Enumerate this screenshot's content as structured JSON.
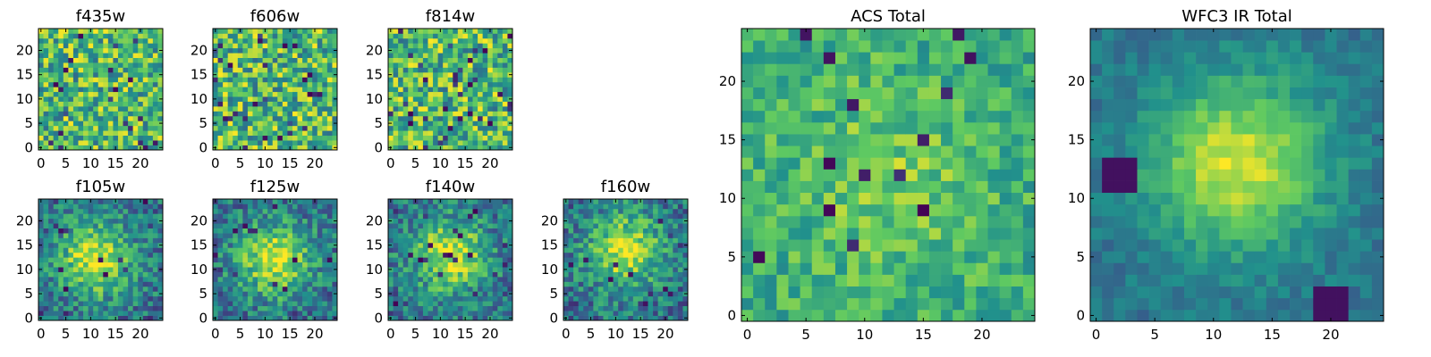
{
  "figure": {
    "background": "#ffffff",
    "colormap": "viridis",
    "colormap_stops": [
      "#440154",
      "#3b528b",
      "#21918c",
      "#5ec962",
      "#fde725"
    ]
  },
  "chart_data": [
    {
      "type": "heatmap",
      "title": "f435w",
      "grid_size": 25,
      "xlim": [
        0,
        24
      ],
      "ylim": [
        0,
        24
      ],
      "x_ticks": [
        "0",
        "5",
        "10",
        "15",
        "20"
      ],
      "y_ticks": [
        "0",
        "5",
        "10",
        "15",
        "20"
      ],
      "pattern": "uniform noise",
      "value_range": [
        0,
        1
      ]
    },
    {
      "type": "heatmap",
      "title": "f606w",
      "grid_size": 25,
      "xlim": [
        0,
        24
      ],
      "ylim": [
        0,
        24
      ],
      "x_ticks": [
        "0",
        "5",
        "10",
        "15",
        "20"
      ],
      "y_ticks": [
        "0",
        "5",
        "10",
        "15",
        "20"
      ],
      "pattern": "uniform noise",
      "value_range": [
        0,
        1
      ]
    },
    {
      "type": "heatmap",
      "title": "f814w",
      "grid_size": 25,
      "xlim": [
        0,
        24
      ],
      "ylim": [
        0,
        24
      ],
      "x_ticks": [
        "0",
        "5",
        "10",
        "15",
        "20"
      ],
      "y_ticks": [
        "0",
        "5",
        "10",
        "15",
        "20"
      ],
      "pattern": "uniform noise",
      "value_range": [
        0,
        1
      ]
    },
    {
      "type": "heatmap",
      "title": "f105w",
      "grid_size": 25,
      "xlim": [
        0,
        24
      ],
      "ylim": [
        0,
        24
      ],
      "x_ticks": [
        "0",
        "5",
        "10",
        "15",
        "20"
      ],
      "y_ticks": [
        "0",
        "5",
        "10",
        "15",
        "20"
      ],
      "pattern": "central bright blob",
      "center": [
        11,
        12
      ],
      "value_range": [
        0,
        1
      ]
    },
    {
      "type": "heatmap",
      "title": "f125w",
      "grid_size": 25,
      "xlim": [
        0,
        24
      ],
      "ylim": [
        0,
        24
      ],
      "x_ticks": [
        "0",
        "5",
        "10",
        "15",
        "20"
      ],
      "y_ticks": [
        "0",
        "5",
        "10",
        "15",
        "20"
      ],
      "pattern": "central bright blob",
      "center": [
        12,
        12
      ],
      "value_range": [
        0,
        1
      ]
    },
    {
      "type": "heatmap",
      "title": "f140w",
      "grid_size": 25,
      "xlim": [
        0,
        24
      ],
      "ylim": [
        0,
        24
      ],
      "x_ticks": [
        "0",
        "5",
        "10",
        "15",
        "20"
      ],
      "y_ticks": [
        "0",
        "5",
        "10",
        "15",
        "20"
      ],
      "pattern": "central bright blob",
      "center": [
        12,
        13
      ],
      "value_range": [
        0,
        1
      ]
    },
    {
      "type": "heatmap",
      "title": "f160w",
      "grid_size": 25,
      "xlim": [
        0,
        24
      ],
      "ylim": [
        0,
        24
      ],
      "x_ticks": [
        "0",
        "5",
        "10",
        "15",
        "20"
      ],
      "y_ticks": [
        "0",
        "5",
        "10",
        "15",
        "20"
      ],
      "pattern": "central bright blob",
      "center": [
        12,
        14
      ],
      "value_range": [
        0,
        1
      ]
    },
    {
      "type": "heatmap",
      "title": "ACS Total",
      "grid_size": 25,
      "xlim": [
        0,
        24
      ],
      "ylim": [
        0,
        24
      ],
      "x_ticks": [
        "0",
        "5",
        "10",
        "15",
        "20"
      ],
      "y_ticks": [
        "0",
        "5",
        "10",
        "15",
        "20"
      ],
      "pattern": "noise with faint center",
      "value_range": [
        0,
        1
      ]
    },
    {
      "type": "heatmap",
      "title": "WFC3 IR Total",
      "grid_size": 25,
      "xlim": [
        0,
        24
      ],
      "ylim": [
        0,
        24
      ],
      "x_ticks": [
        "0",
        "5",
        "10",
        "15",
        "20"
      ],
      "y_ticks": [
        "0",
        "5",
        "10",
        "15",
        "20"
      ],
      "pattern": "smooth central bright blob",
      "center": [
        12,
        13
      ],
      "dark_spots": [
        [
          2,
          12
        ],
        [
          20,
          1
        ]
      ],
      "value_range": [
        0,
        1
      ]
    }
  ]
}
